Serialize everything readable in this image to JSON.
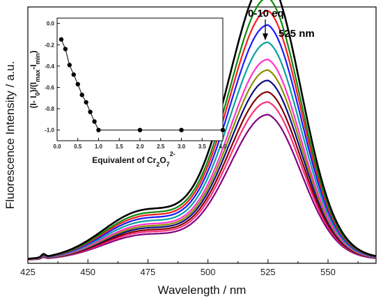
{
  "chart_data": [
    {
      "type": "line",
      "xlabel": "Wavelength / nm",
      "ylabel": "Fluorescence Intensity / a.u.",
      "xlim": [
        425,
        570
      ],
      "ylim": [
        0,
        1
      ],
      "x_ticks": [
        "425",
        "450",
        "475",
        "500",
        "525",
        "550"
      ],
      "y_ticks": [],
      "grid": false,
      "peak_wavelength": 525,
      "annotations": {
        "range_label": "0-10 eq",
        "peak_label": "525 nm"
      },
      "series": [
        {
          "color": "#000000",
          "peak": 0.986
        },
        {
          "color": "#0a8a0a",
          "peak": 0.917
        },
        {
          "color": "#ff1a1a",
          "peak": 0.871
        },
        {
          "color": "#1a1aff",
          "peak": 0.821
        },
        {
          "color": "#0aa0a0",
          "peak": 0.761
        },
        {
          "color": "#ff33cc",
          "peak": 0.701
        },
        {
          "color": "#8c8c00",
          "peak": 0.664
        },
        {
          "color": "#0a0a80",
          "peak": 0.628
        },
        {
          "color": "#800000",
          "peak": 0.588
        },
        {
          "color": "#ff2d7a",
          "peak": 0.553
        },
        {
          "color": "#800080",
          "peak": 0.509
        }
      ]
    },
    {
      "type": "scatter",
      "xlabel_main": "Equivalent of Cr",
      "xlabel_sub": "2",
      "xlabel_main2": "O",
      "xlabel_sub2": "7",
      "xlabel_sup2": "2-",
      "ylabel": "(I- I0)/(Imax-Imin)",
      "ylabel_parts": {
        "a": "(I- I",
        "b": "0",
        "c": ")/(I",
        "d": "max",
        "e": "-I",
        "f": "min",
        "g": ")"
      },
      "xlim": [
        0,
        4
      ],
      "ylim": [
        -1.1,
        0.05
      ],
      "x_ticks": [
        "0.0",
        "0.5",
        "1.0",
        "1.5",
        "2.0",
        "2.5",
        "3.0",
        "3.5",
        "4.0"
      ],
      "y_ticks": [
        "0.0",
        "-0.2",
        "-0.4",
        "-0.6",
        "-0.8",
        "-1.0"
      ],
      "x": [
        0.1,
        0.2,
        0.3,
        0.4,
        0.5,
        0.6,
        0.7,
        0.8,
        0.9,
        1.0,
        2.0,
        3.0,
        4.0
      ],
      "y": [
        -0.15,
        -0.24,
        -0.39,
        -0.48,
        -0.57,
        -0.67,
        -0.74,
        -0.83,
        -0.92,
        -1.0,
        -1.0,
        -1.0,
        -1.0
      ]
    }
  ]
}
